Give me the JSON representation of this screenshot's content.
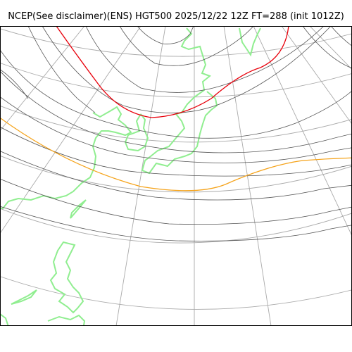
{
  "title": "NCEP(See disclaimer)(ENS) HGT500 2025/12/22 12Z FT=288 (init 1012Z)",
  "colors": {
    "contour": "#555555",
    "highlight_red": "#e8000b",
    "highlight_orange": "#f5a31a",
    "coastline": "#90ee90",
    "graticule": "#aaaaaa",
    "frame": "#000000",
    "background": "#ffffff"
  }
}
